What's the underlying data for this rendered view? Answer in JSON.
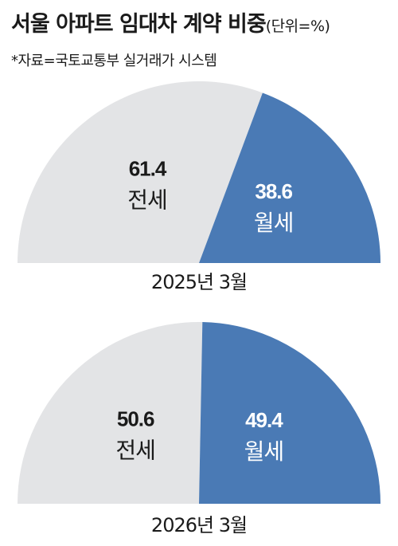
{
  "title": "서울 아파트 임대차 계약 비중",
  "unit": "(단위=%)",
  "source": "*자료=국토교통부 실거래가 시스템",
  "colors": {
    "jeonse": "#e3e4e6",
    "wolse": "#4a7ab5",
    "jeonse_text": "#1a1a1a",
    "wolse_text": "#ffffff"
  },
  "chart_data": [
    {
      "type": "pie",
      "shape": "semicircle",
      "label": "2025년 3월",
      "slices": [
        {
          "name": "전세",
          "value": 61.4
        },
        {
          "name": "월세",
          "value": 38.6
        }
      ]
    },
    {
      "type": "pie",
      "shape": "semicircle",
      "label": "2026년 3월",
      "slices": [
        {
          "name": "전세",
          "value": 50.6
        },
        {
          "name": "월세",
          "value": 49.4
        }
      ]
    }
  ]
}
